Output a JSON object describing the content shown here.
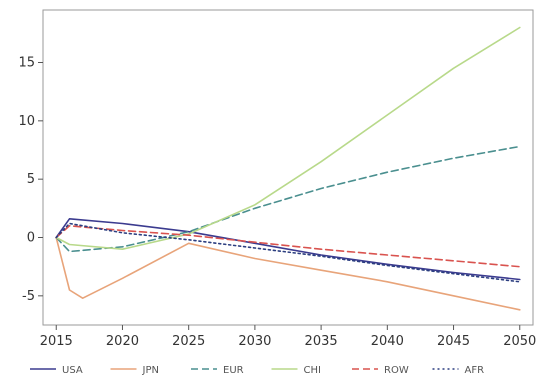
{
  "chart_data": {
    "type": "line",
    "title": "",
    "xlabel": "",
    "ylabel": "",
    "xlim": [
      2014,
      2051
    ],
    "ylim": [
      -7.5,
      19.5
    ],
    "x_ticks": [
      2015,
      2020,
      2025,
      2030,
      2035,
      2040,
      2045,
      2050
    ],
    "y_ticks": [
      -5,
      0,
      5,
      10,
      15
    ],
    "grid": false,
    "legend_position": "bottom",
    "series": [
      {
        "name": "USA",
        "color": "#3b3b8f",
        "dash": "solid",
        "x": [
          2015,
          2016,
          2020,
          2025,
          2030,
          2035,
          2040,
          2045,
          2050
        ],
        "y": [
          0,
          1.6,
          1.2,
          0.5,
          -0.5,
          -1.5,
          -2.3,
          -3.0,
          -3.6
        ]
      },
      {
        "name": "JPN",
        "color": "#e8a47a",
        "dash": "solid",
        "x": [
          2015,
          2016,
          2017,
          2020,
          2025,
          2030,
          2035,
          2040,
          2045,
          2050
        ],
        "y": [
          0,
          -4.5,
          -5.2,
          -3.5,
          -0.5,
          -1.8,
          -2.8,
          -3.8,
          -5.0,
          -6.2
        ]
      },
      {
        "name": "EUR",
        "color": "#4a8f8f",
        "dash": "dashed",
        "x": [
          2015,
          2016,
          2020,
          2025,
          2030,
          2035,
          2040,
          2045,
          2050
        ],
        "y": [
          0,
          -1.2,
          -0.8,
          0.5,
          2.5,
          4.2,
          5.6,
          6.8,
          7.8
        ]
      },
      {
        "name": "CHI",
        "color": "#b8d98a",
        "dash": "solid",
        "x": [
          2015,
          2016,
          2020,
          2025,
          2030,
          2035,
          2040,
          2045,
          2050
        ],
        "y": [
          0,
          -0.6,
          -1.0,
          0.3,
          2.8,
          6.5,
          10.5,
          14.5,
          18.0
        ]
      },
      {
        "name": "ROW",
        "color": "#d9534f",
        "dash": "dashed",
        "x": [
          2015,
          2016,
          2020,
          2025,
          2030,
          2035,
          2040,
          2045,
          2050
        ],
        "y": [
          0,
          1.0,
          0.6,
          0.2,
          -0.4,
          -1.0,
          -1.5,
          -2.0,
          -2.5
        ]
      },
      {
        "name": "AFR",
        "color": "#2c3e80",
        "dash": "dotted",
        "x": [
          2015,
          2016,
          2020,
          2025,
          2030,
          2035,
          2040,
          2045,
          2050
        ],
        "y": [
          0,
          1.2,
          0.4,
          -0.2,
          -0.9,
          -1.6,
          -2.4,
          -3.1,
          -3.8
        ]
      }
    ]
  }
}
